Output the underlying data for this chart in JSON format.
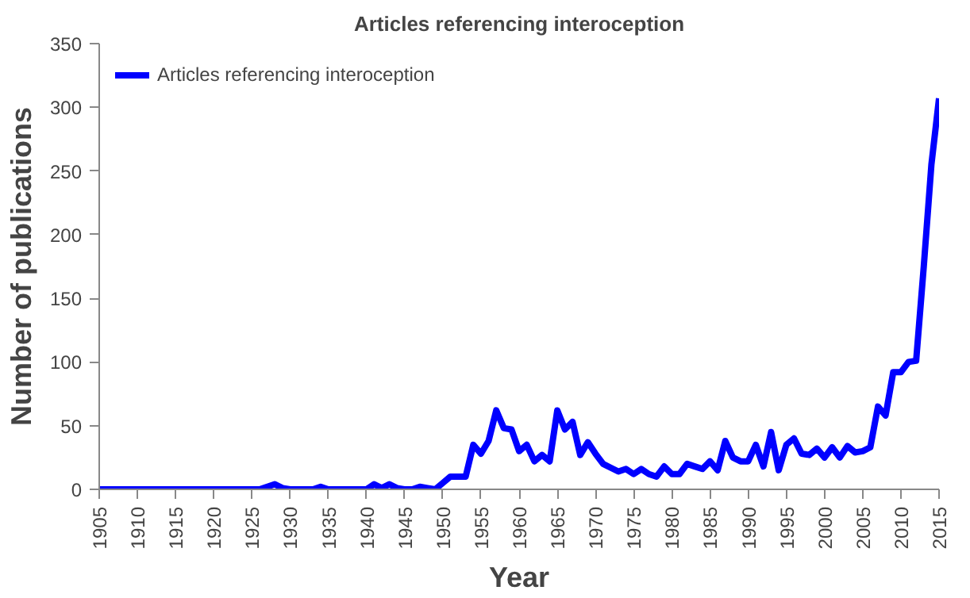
{
  "chart_data": {
    "type": "line",
    "title": "Articles referencing interoception",
    "xlabel": "Year",
    "ylabel": "Number of publications",
    "x": [
      1905,
      1906,
      1907,
      1908,
      1909,
      1910,
      1911,
      1912,
      1913,
      1914,
      1915,
      1916,
      1917,
      1918,
      1919,
      1920,
      1921,
      1922,
      1923,
      1924,
      1925,
      1926,
      1927,
      1928,
      1929,
      1930,
      1931,
      1932,
      1933,
      1934,
      1935,
      1936,
      1937,
      1938,
      1939,
      1940,
      1941,
      1942,
      1943,
      1944,
      1945,
      1946,
      1947,
      1948,
      1949,
      1950,
      1951,
      1952,
      1953,
      1954,
      1955,
      1956,
      1957,
      1958,
      1959,
      1960,
      1961,
      1962,
      1963,
      1964,
      1965,
      1966,
      1967,
      1968,
      1969,
      1970,
      1971,
      1972,
      1973,
      1974,
      1975,
      1976,
      1977,
      1978,
      1979,
      1980,
      1981,
      1982,
      1983,
      1984,
      1985,
      1986,
      1987,
      1988,
      1989,
      1990,
      1991,
      1992,
      1993,
      1994,
      1995,
      1996,
      1997,
      1998,
      1999,
      2000,
      2001,
      2002,
      2003,
      2004,
      2005,
      2006,
      2007,
      2008,
      2009,
      2010,
      2011,
      2012,
      2013,
      2014,
      2015
    ],
    "series": [
      {
        "name": "Articles referencing interoception",
        "color": "#0000ff",
        "values": [
          0,
          0,
          0,
          0,
          0,
          0,
          0,
          0,
          0,
          0,
          0,
          0,
          0,
          0,
          0,
          0,
          0,
          0,
          0,
          0,
          0,
          0,
          2,
          4,
          1,
          0,
          0,
          0,
          0,
          2,
          0,
          0,
          0,
          0,
          0,
          0,
          4,
          1,
          4,
          1,
          0,
          0,
          2,
          1,
          0,
          5,
          10,
          10,
          10,
          35,
          28,
          38,
          62,
          48,
          47,
          30,
          35,
          22,
          27,
          22,
          62,
          47,
          53,
          27,
          37,
          28,
          20,
          17,
          14,
          16,
          12,
          16,
          12,
          10,
          18,
          12,
          12,
          20,
          18,
          16,
          22,
          15,
          38,
          25,
          22,
          22,
          35,
          18,
          45,
          15,
          35,
          40,
          28,
          27,
          32,
          25,
          33,
          25,
          34,
          29,
          30,
          33,
          65,
          58,
          92,
          92,
          100,
          101,
          175,
          255,
          307
        ]
      }
    ],
    "xlim": [
      1905,
      2015
    ],
    "xticks": [
      1905,
      1910,
      1915,
      1920,
      1925,
      1930,
      1935,
      1940,
      1945,
      1950,
      1955,
      1960,
      1965,
      1970,
      1975,
      1980,
      1985,
      1990,
      1995,
      2000,
      2005,
      2010,
      2015
    ],
    "ylim": [
      0,
      350
    ],
    "yticks": [
      0,
      50,
      100,
      150,
      200,
      250,
      300,
      350
    ],
    "grid": false,
    "legend": "top left",
    "marker": "none",
    "line_style": "solid"
  }
}
